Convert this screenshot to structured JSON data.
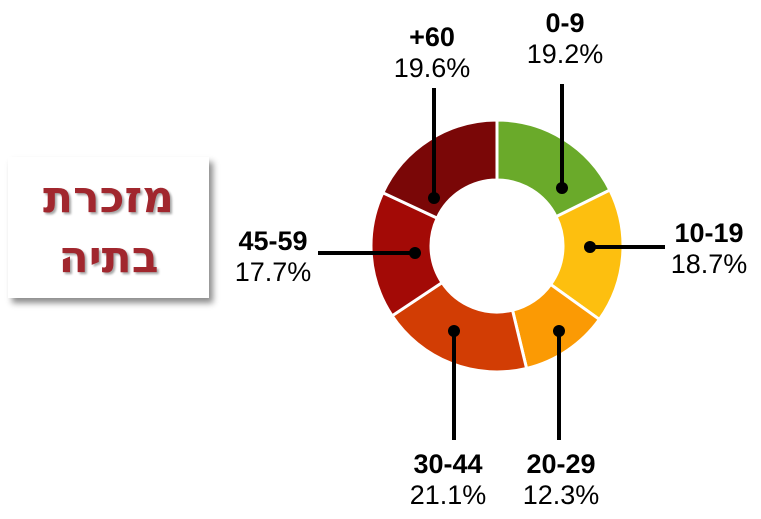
{
  "title_lines": [
    "מזכרת",
    "בתיה"
  ],
  "chart_data": {
    "type": "pie",
    "donut": true,
    "categories": [
      "0-9",
      "10-19",
      "20-29",
      "30-44",
      "45-59",
      "+60"
    ],
    "values": [
      19.2,
      18.7,
      12.3,
      21.1,
      17.7,
      19.6
    ],
    "value_labels": [
      "19.2%",
      "18.7%",
      "12.3%",
      "21.1%",
      "17.7%",
      "19.6%"
    ],
    "colors": [
      "#6aaa2a",
      "#fdbf0f",
      "#fb9a04",
      "#d23d04",
      "#a30a06",
      "#7a0707"
    ]
  }
}
